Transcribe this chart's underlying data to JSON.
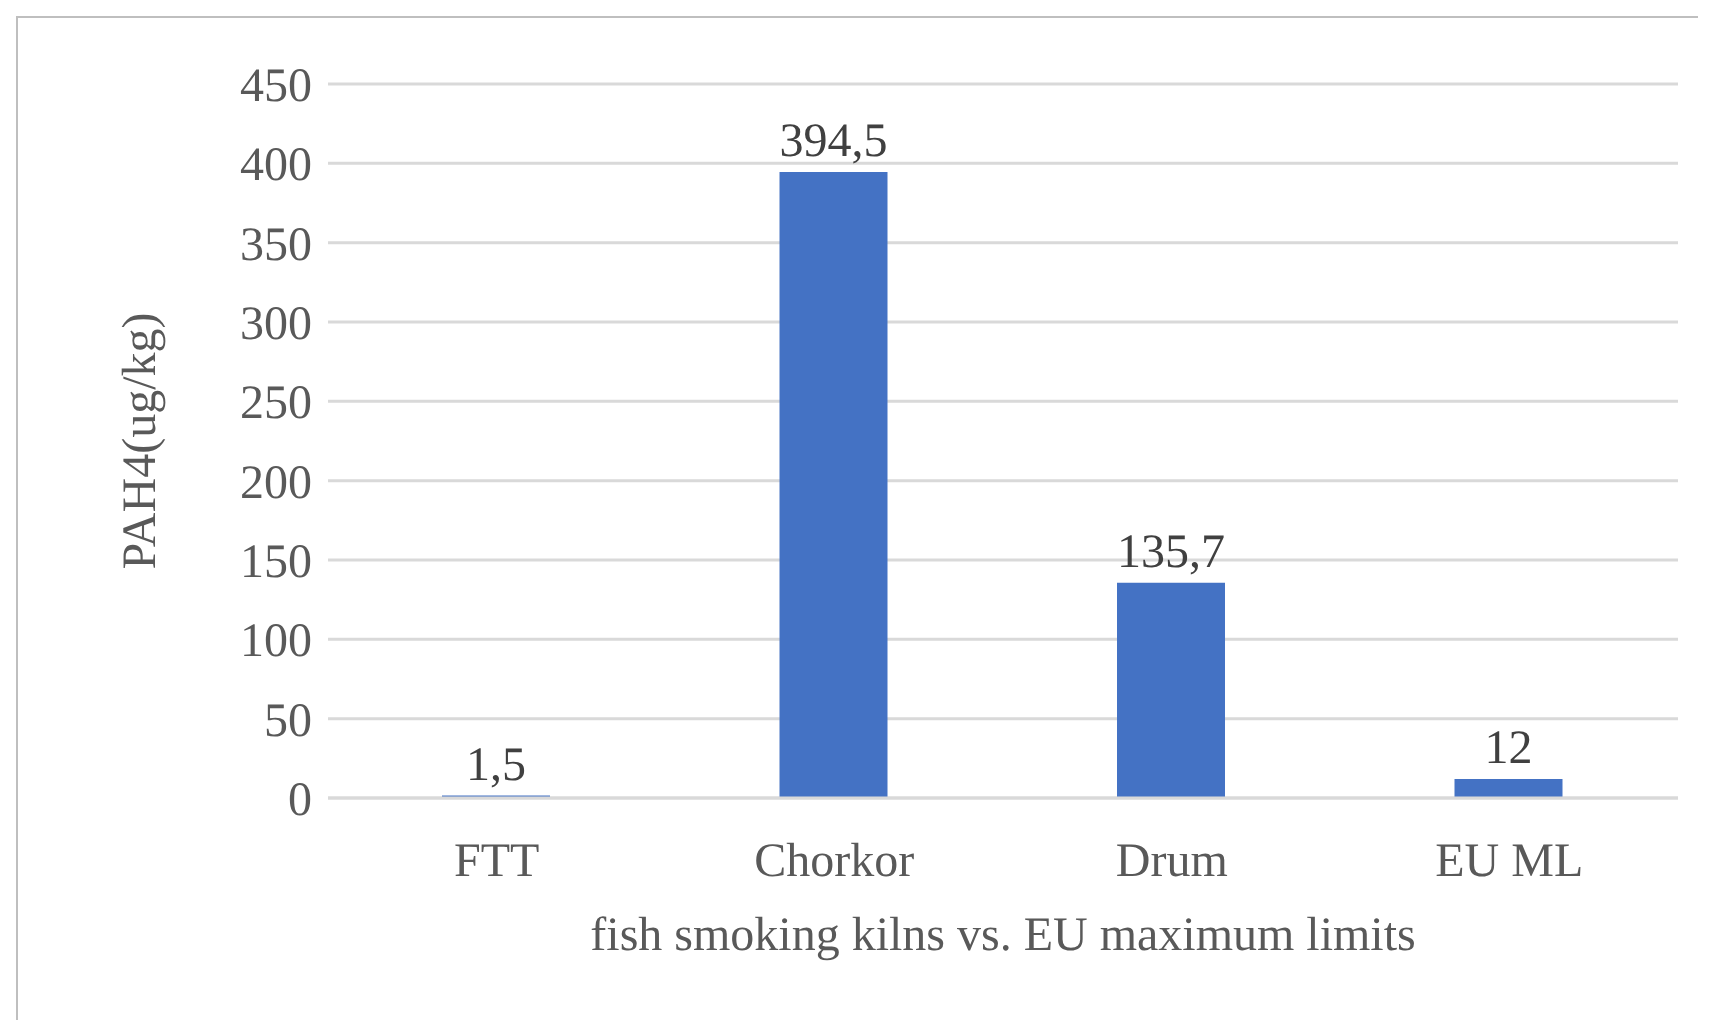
{
  "chart_data": {
    "type": "bar",
    "xlabel": "fish smoking kilns vs. EU maximum limits",
    "ylabel": "PAH4(ug/kg)",
    "categories": [
      "FTT",
      "Chorkor",
      "Drum",
      "EU ML"
    ],
    "values": [
      1.5,
      394.5,
      135.7,
      12
    ],
    "value_labels": [
      "1,5",
      "394,5",
      "135,7",
      "12"
    ],
    "color": "#4472c4",
    "ylim": [
      0,
      450
    ],
    "yticks": [
      0,
      50,
      100,
      150,
      200,
      250,
      300,
      350,
      400,
      450
    ],
    "grid": "y"
  }
}
